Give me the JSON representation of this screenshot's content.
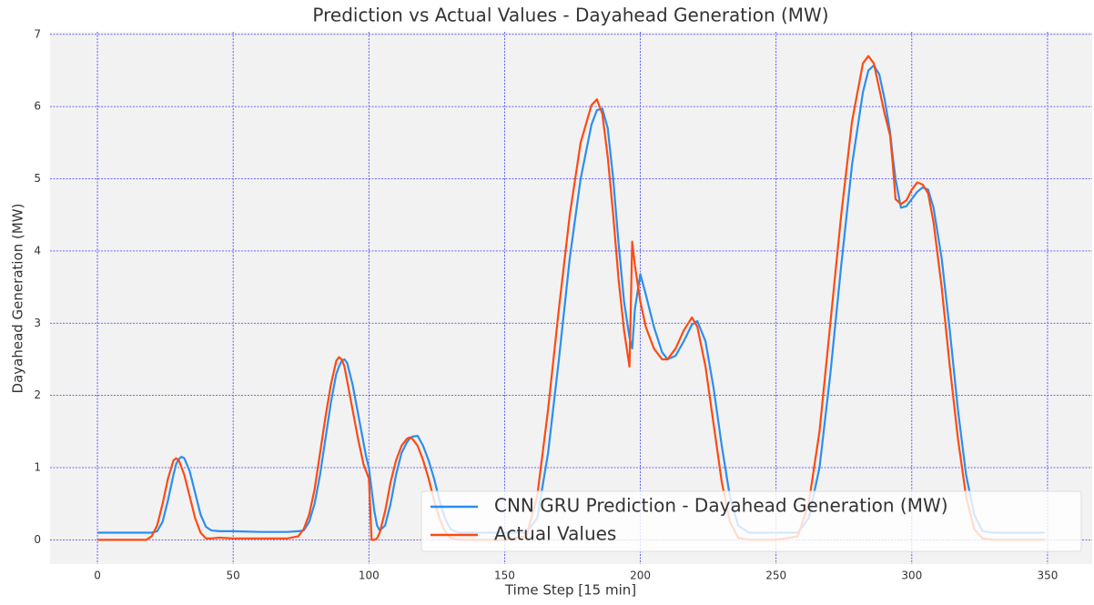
{
  "chart_data": {
    "type": "line",
    "title": "Prediction vs Actual Values - Dayahead Generation (MW)",
    "xlabel": "Time Step [15 min]",
    "ylabel": "Dayahead Generation (MW)",
    "x": [
      0,
      10,
      18,
      20,
      22,
      24,
      26,
      28,
      29,
      30,
      31,
      32,
      34,
      36,
      38,
      40,
      42,
      45,
      50,
      60,
      70,
      74,
      76,
      78,
      80,
      82,
      84,
      86,
      88,
      89,
      90,
      91,
      92,
      94,
      96,
      98,
      99,
      100,
      101,
      102,
      103,
      104,
      106,
      108,
      110,
      112,
      114,
      115,
      116,
      118,
      120,
      122,
      124,
      126,
      128,
      130,
      133,
      140,
      150,
      158,
      162,
      166,
      170,
      174,
      178,
      182,
      184,
      186,
      188,
      190,
      192,
      194,
      196,
      197,
      198,
      200,
      202,
      205,
      208,
      210,
      213,
      216,
      219,
      221,
      224,
      227,
      230,
      233,
      236,
      240,
      250,
      258,
      262,
      266,
      270,
      274,
      278,
      282,
      284,
      286,
      288,
      290,
      292,
      293,
      294,
      296,
      298,
      300,
      302,
      304,
      306,
      308,
      311,
      314,
      317,
      320,
      323,
      326,
      330,
      340,
      349
    ],
    "series": [
      {
        "name": "CNN GRU Prediction - Dayahead Generation (MW)",
        "color": "#2b8ef0",
        "values": [
          0.1,
          0.1,
          0.1,
          0.1,
          0.12,
          0.25,
          0.55,
          0.9,
          1.05,
          1.12,
          1.15,
          1.13,
          0.95,
          0.65,
          0.35,
          0.18,
          0.13,
          0.12,
          0.12,
          0.11,
          0.11,
          0.12,
          0.13,
          0.25,
          0.5,
          0.9,
          1.4,
          1.9,
          2.3,
          2.4,
          2.48,
          2.5,
          2.45,
          2.15,
          1.75,
          1.35,
          1.15,
          1.0,
          0.7,
          0.4,
          0.2,
          0.13,
          0.2,
          0.5,
          0.9,
          1.2,
          1.35,
          1.4,
          1.43,
          1.44,
          1.3,
          1.1,
          0.85,
          0.55,
          0.3,
          0.15,
          0.1,
          0.1,
          0.1,
          0.1,
          0.3,
          1.2,
          2.5,
          3.9,
          5.0,
          5.75,
          5.95,
          5.97,
          5.7,
          5.0,
          4.1,
          3.3,
          2.8,
          2.65,
          3.2,
          3.68,
          3.4,
          2.95,
          2.6,
          2.5,
          2.55,
          2.75,
          2.98,
          3.03,
          2.75,
          2.1,
          1.3,
          0.6,
          0.2,
          0.1,
          0.1,
          0.1,
          0.3,
          1.0,
          2.3,
          3.8,
          5.2,
          6.2,
          6.5,
          6.57,
          6.45,
          6.1,
          5.65,
          5.3,
          5.0,
          4.6,
          4.62,
          4.72,
          4.82,
          4.88,
          4.85,
          4.6,
          3.9,
          2.9,
          1.8,
          0.9,
          0.35,
          0.12,
          0.1,
          0.1,
          0.1
        ]
      },
      {
        "name": "Actual Values",
        "color": "#ff4a12",
        "values": [
          0,
          0,
          0,
          0.05,
          0.2,
          0.5,
          0.85,
          1.1,
          1.13,
          1.1,
          1.0,
          0.9,
          0.6,
          0.3,
          0.1,
          0.02,
          0.02,
          0.03,
          0.02,
          0.02,
          0.02,
          0.05,
          0.15,
          0.35,
          0.7,
          1.2,
          1.7,
          2.15,
          2.48,
          2.53,
          2.5,
          2.4,
          2.2,
          1.8,
          1.4,
          1.05,
          0.95,
          0.85,
          0,
          0,
          0.02,
          0.1,
          0.4,
          0.8,
          1.1,
          1.3,
          1.4,
          1.42,
          1.4,
          1.3,
          1.1,
          0.85,
          0.55,
          0.3,
          0.12,
          0.03,
          0,
          0,
          0,
          0.05,
          0.6,
          1.8,
          3.2,
          4.5,
          5.5,
          6.02,
          6.1,
          5.9,
          5.3,
          4.5,
          3.6,
          2.9,
          2.4,
          4.13,
          3.8,
          3.3,
          2.95,
          2.65,
          2.5,
          2.5,
          2.65,
          2.9,
          3.08,
          2.95,
          2.4,
          1.6,
          0.8,
          0.25,
          0.03,
          0,
          0,
          0.05,
          0.5,
          1.5,
          3.0,
          4.5,
          5.8,
          6.6,
          6.7,
          6.6,
          6.25,
          5.9,
          5.6,
          5.2,
          4.72,
          4.65,
          4.7,
          4.85,
          4.95,
          4.92,
          4.8,
          4.4,
          3.5,
          2.4,
          1.4,
          0.6,
          0.15,
          0.02,
          0,
          0,
          0
        ]
      }
    ],
    "xlim": [
      -17.45,
      366.45
    ],
    "xticks": [
      0,
      50,
      100,
      150,
      200,
      250,
      300,
      350
    ],
    "ylim": [
      -0.335,
      7.035
    ],
    "yticks": [
      0,
      1,
      2,
      3,
      4,
      5,
      6,
      7
    ],
    "grid": true,
    "legend": "lower right"
  }
}
